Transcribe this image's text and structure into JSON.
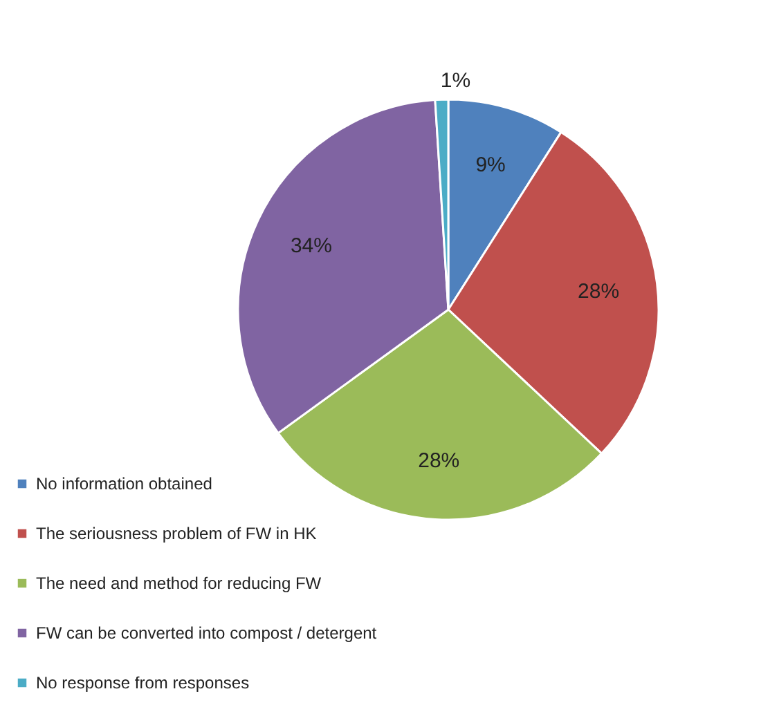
{
  "chart_data": {
    "type": "pie",
    "categories": [
      "No information obtained",
      "The seriousness problem of FW in HK",
      "The need and method for reducing FW",
      "FW can be converted into compost / detergent",
      "No response from responses"
    ],
    "values": [
      9,
      28,
      28,
      34,
      1
    ],
    "colors": [
      "#4f81bd",
      "#c0504d",
      "#9bbb59",
      "#8064a2",
      "#4bacc6"
    ],
    "value_labels": [
      "9%",
      "28%",
      "28%",
      "34%",
      "1%"
    ],
    "legend": "bottom left"
  }
}
